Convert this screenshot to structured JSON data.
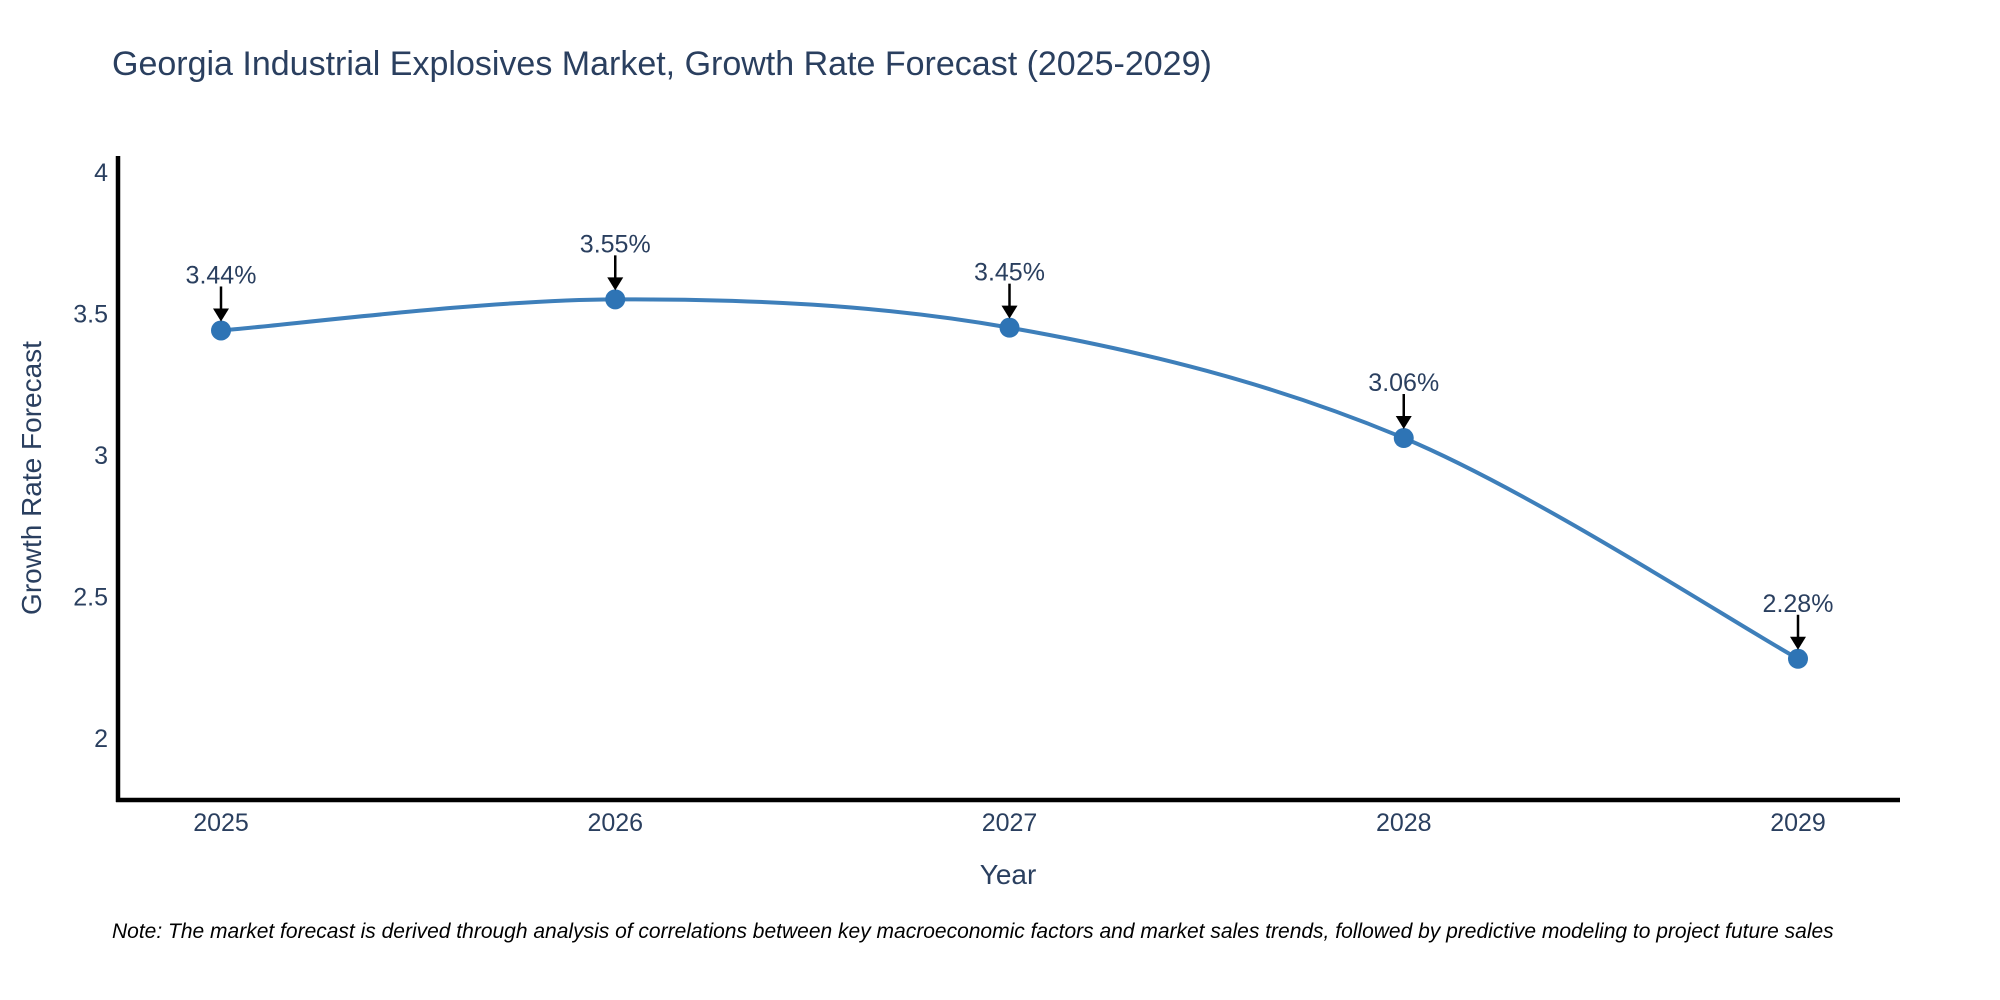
{
  "note": "Note: The market forecast is derived through analysis of correlations between key macroeconomic factors and market sales trends, followed by predictive modeling to project future sales",
  "colors": {
    "text": "#2a3f5f",
    "axis_line": "#000000",
    "line": "#3e7fba",
    "marker": "#2e74b5",
    "annotation_arrow": "#000000",
    "background": "#ffffff"
  },
  "chart_data": {
    "type": "line",
    "title": "Georgia Industrial Explosives Market, Growth Rate Forecast (2025-2029)",
    "xlabel": "Year",
    "ylabel": "Growth Rate Forecast",
    "categories": [
      "2025",
      "2026",
      "2027",
      "2028",
      "2029"
    ],
    "values": [
      3.44,
      3.55,
      3.45,
      3.06,
      2.28
    ],
    "point_labels": [
      "3.44%",
      "3.55%",
      "3.45%",
      "3.06%",
      "2.28%"
    ],
    "yticks": [
      2,
      2.5,
      3,
      3.5,
      4
    ],
    "ytick_labels": [
      "2",
      "2.5",
      "3",
      "3.5",
      "4"
    ],
    "ylim": [
      1.8,
      4.05
    ],
    "grid": false,
    "legend": "none",
    "line_shape": "spline",
    "annotations": "percentage value above each point with a downward black arrow"
  }
}
